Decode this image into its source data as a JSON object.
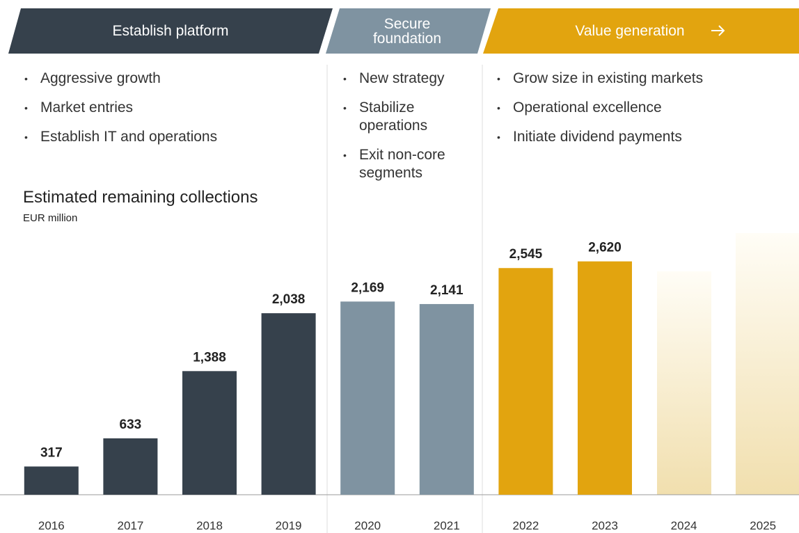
{
  "chart_data": {
    "type": "bar",
    "title": "Estimated remaining collections",
    "subtitle": "EUR million",
    "categories": [
      "2016",
      "2017",
      "2018",
      "2019",
      "2020",
      "2021",
      "2022",
      "2023",
      "2024",
      "2025"
    ],
    "values": [
      317,
      633,
      1388,
      2038,
      2169,
      2141,
      2545,
      2620,
      null,
      null
    ],
    "value_labels": [
      "317",
      "633",
      "1,388",
      "2,038",
      "2,169",
      "2,141",
      "2,545",
      "2,620",
      null,
      null
    ],
    "colors": [
      "#36414c",
      "#36414c",
      "#36414c",
      "#36414c",
      "#7f93a1",
      "#7f93a1",
      "#e2a40f",
      "#e2a40f",
      null,
      null
    ],
    "ylim": [
      0,
      3000
    ]
  },
  "phases": [
    {
      "title": "Establish platform",
      "bullets": [
        "Aggressive growth",
        "Market entries",
        "Establish IT and operations"
      ]
    },
    {
      "title": "Secure foundation",
      "bullets": [
        "New strategy",
        "Stabilize operations",
        "Exit non-core segments"
      ]
    },
    {
      "title": "Value generation",
      "bullets": [
        "Grow size in existing markets",
        "Operational excellence",
        "Initiate dividend payments"
      ]
    }
  ]
}
